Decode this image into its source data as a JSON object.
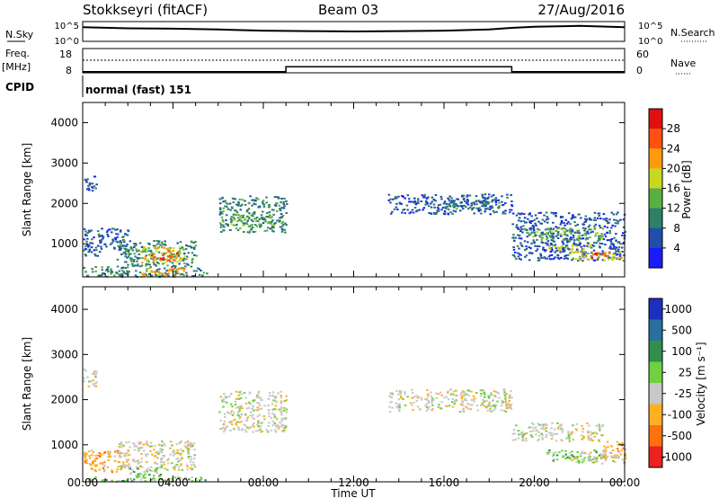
{
  "header": {
    "station": "Stokkseyri (fitACF)",
    "beam": "Beam 03",
    "date": "27/Aug/2016"
  },
  "noise_panel": {
    "left_label": "N.Sky",
    "right_label": "N.Search",
    "left_ticks": [
      "10^5",
      "10^0"
    ],
    "right_ticks": [
      "10^5",
      "10^0"
    ]
  },
  "freq_panel": {
    "left_label_1": "Freq.",
    "left_label_2": "[MHz]",
    "right_label": "Nave",
    "left_ticks": [
      "18",
      "8"
    ],
    "right_ticks": [
      "60",
      "0"
    ]
  },
  "cpid": {
    "label": "CPID",
    "value": "normal (fast) 151"
  },
  "x_axis": {
    "title": "Time UT",
    "ticks": [
      "00:00",
      "04:00",
      "08:00",
      "12:00",
      "16:00",
      "20:00",
      "00:00"
    ]
  },
  "y_axis": {
    "title": "Slant Range [km]",
    "ticks": [
      "1000",
      "2000",
      "3000",
      "4000"
    ]
  },
  "power_colorbar": {
    "label": "Power [dB]",
    "ticks": [
      "4",
      "8",
      "12",
      "16",
      "20",
      "24",
      "28"
    ],
    "colors": [
      "#1a1aff",
      "#1f4fa8",
      "#2f7f6a",
      "#58b040",
      "#c8d820",
      "#ff9a10",
      "#ff5010",
      "#e01010"
    ]
  },
  "velocity_colorbar": {
    "label": "Velocity [m s⁻¹]",
    "ticks": [
      "1000",
      "500",
      "100",
      "25",
      "-25",
      "-100",
      "-500",
      "-1000"
    ],
    "colors": [
      "#1d2fbf",
      "#2a6f9f",
      "#2f8f4f",
      "#6fd040",
      "#c8c8c8",
      "#ffb020",
      "#ff7010",
      "#ee2020"
    ]
  },
  "chart_data": [
    {
      "type": "line",
      "title": "N.Sky / N.Search",
      "x": [
        0,
        2,
        4,
        6,
        8,
        10,
        12,
        14,
        16,
        18,
        19,
        20,
        22,
        24
      ],
      "series": [
        {
          "name": "N.Sky",
          "values": [
            3.6,
            3.3,
            3.2,
            3.0,
            2.7,
            2.6,
            2.5,
            2.6,
            2.7,
            3.0,
            3.4,
            3.7,
            3.9,
            3.6
          ]
        }
      ],
      "ylim": [
        0,
        5
      ]
    },
    {
      "type": "line",
      "title": "Freq. [MHz]",
      "x": [
        0,
        9,
        9,
        19,
        19,
        24
      ],
      "series": [
        {
          "name": "Freq.",
          "values": [
            8.5,
            8.5,
            10.5,
            10.5,
            8.5,
            8.5
          ]
        }
      ],
      "ylim": [
        8,
        18
      ]
    },
    {
      "type": "heatmap",
      "title": "Power [dB]",
      "xlabel": "Time UT",
      "ylabel": "Slant Range [km]",
      "xlim": [
        0,
        24
      ],
      "ylim": [
        180,
        4500
      ],
      "patches": [
        {
          "t0": 0.0,
          "t1": 0.6,
          "r0": 2300,
          "r1": 2700,
          "level": 1
        },
        {
          "t0": 0.0,
          "t1": 2.0,
          "r0": 700,
          "r1": 1400,
          "level": 1
        },
        {
          "t0": 0.0,
          "t1": 5.5,
          "r0": 200,
          "r1": 450,
          "level": 2
        },
        {
          "t0": 1.5,
          "t1": 5.0,
          "r0": 450,
          "r1": 1100,
          "level": 2
        },
        {
          "t0": 2.5,
          "t1": 4.5,
          "r0": 550,
          "r1": 950,
          "level": 4
        },
        {
          "t0": 3.0,
          "t1": 4.2,
          "r0": 600,
          "r1": 850,
          "level": 6
        },
        {
          "t0": 2.5,
          "t1": 4.5,
          "r0": 200,
          "r1": 420,
          "level": 5
        },
        {
          "t0": 6.0,
          "t1": 9.0,
          "r0": 1300,
          "r1": 2200,
          "level": 2
        },
        {
          "t0": 6.5,
          "t1": 8.5,
          "r0": 1450,
          "r1": 1750,
          "level": 3
        },
        {
          "t0": 13.5,
          "t1": 19.0,
          "r0": 1750,
          "r1": 2250,
          "level": 1
        },
        {
          "t0": 16.0,
          "t1": 18.5,
          "r0": 1850,
          "r1": 2100,
          "level": 2
        },
        {
          "t0": 19.0,
          "t1": 24.0,
          "r0": 600,
          "r1": 1800,
          "level": 1
        },
        {
          "t0": 19.5,
          "t1": 23.0,
          "r0": 1100,
          "r1": 1400,
          "level": 3
        },
        {
          "t0": 20.5,
          "t1": 22.5,
          "r0": 850,
          "r1": 1000,
          "level": 4
        },
        {
          "t0": 21.5,
          "t1": 24.0,
          "r0": 600,
          "r1": 850,
          "level": 4
        },
        {
          "t0": 22.5,
          "t1": 23.5,
          "r0": 650,
          "r1": 800,
          "level": 6
        }
      ]
    },
    {
      "type": "heatmap",
      "title": "Velocity [m s⁻¹]",
      "xlabel": "Time UT",
      "ylabel": "Slant Range [km]",
      "xlim": [
        0,
        24
      ],
      "ylim": [
        180,
        4500
      ],
      "patches": [
        {
          "t0": 0.0,
          "t1": 0.6,
          "r0": 2300,
          "r1": 2700,
          "level": 4
        },
        {
          "t0": 0.0,
          "t1": 2.0,
          "r0": 400,
          "r1": 900,
          "level": 5
        },
        {
          "t0": 1.5,
          "t1": 5.0,
          "r0": 450,
          "r1": 1100,
          "level": 4
        },
        {
          "t0": 2.0,
          "t1": 3.5,
          "r0": 250,
          "r1": 500,
          "level": 3
        },
        {
          "t0": 0.0,
          "t1": 5.5,
          "r0": 200,
          "r1": 300,
          "level": 3
        },
        {
          "t0": 6.0,
          "t1": 9.0,
          "r0": 1300,
          "r1": 2200,
          "level": 4
        },
        {
          "t0": 13.5,
          "t1": 19.0,
          "r0": 1750,
          "r1": 2250,
          "level": 4
        },
        {
          "t0": 19.0,
          "t1": 23.0,
          "r0": 1100,
          "r1": 1500,
          "level": 4
        },
        {
          "t0": 20.5,
          "t1": 23.0,
          "r0": 650,
          "r1": 900,
          "level": 3
        },
        {
          "t0": 23.0,
          "t1": 24.0,
          "r0": 700,
          "r1": 1100,
          "level": 5
        },
        {
          "t0": 21.5,
          "t1": 24.0,
          "r0": 600,
          "r1": 850,
          "level": 4
        }
      ]
    }
  ]
}
